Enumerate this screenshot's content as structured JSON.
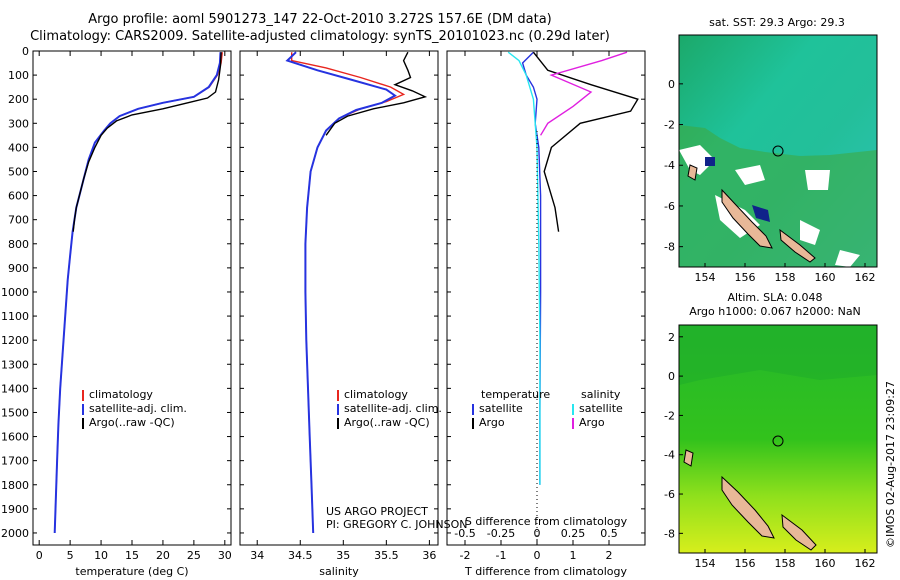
{
  "title": {
    "line1": "Argo profile: aoml 5901273_147 22-Oct-2010 3.272S 157.6E (DM data)",
    "line2": "Climatology: CARS2009. Satellite-adjusted climatology: synTS_20101023.nc (0.29d later)"
  },
  "colors": {
    "climatology": "#e8261f",
    "satellite": "#2633e0",
    "argo": "#000000",
    "argo_salinity": "#e020e0",
    "sat_salinity": "#27e6f0"
  },
  "chart_data": [
    {
      "id": "temperature",
      "type": "line",
      "xlabel": "temperature (deg C)",
      "ylabel": "",
      "xlim": [
        -1,
        31
      ],
      "ylim": [
        2050,
        0
      ],
      "xticks": [
        0,
        5,
        10,
        15,
        20,
        25,
        30
      ],
      "yticks": [
        0,
        100,
        200,
        300,
        400,
        500,
        600,
        700,
        800,
        900,
        1000,
        1100,
        1200,
        1300,
        1400,
        1500,
        1600,
        1700,
        1800,
        1900,
        2000
      ],
      "legend": [
        "climatology",
        "satellite-adj. clim.",
        "Argo(..raw -QC)"
      ],
      "series": [
        {
          "name": "climatology",
          "points": [
            [
              29.6,
              5
            ],
            [
              29.4,
              50
            ],
            [
              28.8,
              100
            ],
            [
              27.5,
              150
            ],
            [
              25,
              190
            ],
            [
              20,
              215
            ],
            [
              16,
              240
            ],
            [
              13,
              270
            ],
            [
              11.5,
              300
            ],
            [
              10.5,
              330
            ],
            [
              9,
              380
            ],
            [
              8,
              450
            ],
            [
              7,
              550
            ],
            [
              6,
              650
            ],
            [
              5.4,
              750
            ],
            [
              5,
              850
            ],
            [
              4.6,
              950
            ],
            [
              4.2,
              1100
            ],
            [
              3.8,
              1250
            ],
            [
              3.4,
              1400
            ],
            [
              3.1,
              1550
            ],
            [
              2.9,
              1700
            ],
            [
              2.7,
              1850
            ],
            [
              2.5,
              2000
            ]
          ]
        },
        {
          "name": "satellite-adj. clim.",
          "points": [
            [
              29.3,
              5
            ],
            [
              29.2,
              50
            ],
            [
              28.7,
              100
            ],
            [
              27.4,
              150
            ],
            [
              25,
              190
            ],
            [
              20,
              215
            ],
            [
              16,
              240
            ],
            [
              13,
              270
            ],
            [
              11.5,
              300
            ],
            [
              10.5,
              330
            ],
            [
              9,
              380
            ],
            [
              8,
              450
            ],
            [
              7,
              550
            ],
            [
              6,
              650
            ],
            [
              5.4,
              750
            ],
            [
              5,
              850
            ],
            [
              4.6,
              950
            ],
            [
              4.2,
              1100
            ],
            [
              3.8,
              1250
            ],
            [
              3.4,
              1400
            ],
            [
              3.1,
              1550
            ],
            [
              2.9,
              1700
            ],
            [
              2.7,
              1850
            ],
            [
              2.5,
              2000
            ]
          ]
        },
        {
          "name": "Argo(..raw -QC)",
          "points": [
            [
              29.4,
              5
            ],
            [
              29.3,
              60
            ],
            [
              29,
              120
            ],
            [
              28.5,
              170
            ],
            [
              27.2,
              195
            ],
            [
              24,
              215
            ],
            [
              20,
              240
            ],
            [
              15,
              265
            ],
            [
              12.5,
              290
            ],
            [
              11,
              320
            ],
            [
              10,
              350
            ],
            [
              9,
              400
            ],
            [
              8,
              460
            ],
            [
              7.2,
              530
            ],
            [
              6.5,
              600
            ],
            [
              6,
              650
            ],
            [
              5.7,
              700
            ],
            [
              5.5,
              750
            ]
          ]
        }
      ]
    },
    {
      "id": "salinity",
      "type": "line",
      "xlabel": "salinity",
      "ylabel": "",
      "xlim": [
        33.8,
        36.1
      ],
      "ylim": [
        2050,
        0
      ],
      "xticks": [
        34,
        34.5,
        35,
        35.5,
        36
      ],
      "legend": [
        "climatology",
        "satellite-adj. clim.",
        "Argo(..raw -QC)"
      ],
      "annotation": [
        "US ARGO PROJECT",
        "PI: GREGORY C. JOHNSON"
      ],
      "series": [
        {
          "name": "climatology",
          "points": [
            [
              34.4,
              5
            ],
            [
              34.4,
              40
            ],
            [
              34.8,
              70
            ],
            [
              35.2,
              110
            ],
            [
              35.55,
              150
            ],
            [
              35.7,
              180
            ],
            [
              35.5,
              210
            ],
            [
              35.2,
              240
            ],
            [
              34.95,
              280
            ],
            [
              34.8,
              330
            ],
            [
              34.7,
              400
            ],
            [
              34.62,
              500
            ],
            [
              34.58,
              650
            ],
            [
              34.56,
              800
            ],
            [
              34.56,
              1000
            ],
            [
              34.57,
              1200
            ],
            [
              34.59,
              1400
            ],
            [
              34.61,
              1600
            ],
            [
              34.63,
              1800
            ],
            [
              34.65,
              2000
            ]
          ]
        },
        {
          "name": "satellite-adj. clim.",
          "points": [
            [
              34.45,
              5
            ],
            [
              34.35,
              40
            ],
            [
              34.7,
              80
            ],
            [
              35.1,
              120
            ],
            [
              35.5,
              160
            ],
            [
              35.6,
              185
            ],
            [
              35.45,
              215
            ],
            [
              35.15,
              245
            ],
            [
              34.95,
              280
            ],
            [
              34.8,
              330
            ],
            [
              34.7,
              400
            ],
            [
              34.62,
              500
            ],
            [
              34.58,
              650
            ],
            [
              34.56,
              800
            ],
            [
              34.56,
              1000
            ],
            [
              34.57,
              1200
            ],
            [
              34.59,
              1400
            ],
            [
              34.61,
              1600
            ],
            [
              34.63,
              1800
            ],
            [
              34.65,
              2000
            ]
          ]
        },
        {
          "name": "Argo(..raw -QC)",
          "points": [
            [
              35.75,
              5
            ],
            [
              35.7,
              40
            ],
            [
              35.75,
              80
            ],
            [
              35.78,
              110
            ],
            [
              35.6,
              140
            ],
            [
              35.8,
              165
            ],
            [
              35.95,
              190
            ],
            [
              35.7,
              215
            ],
            [
              35.35,
              240
            ],
            [
              35.05,
              270
            ],
            [
              34.9,
              300
            ],
            [
              34.8,
              350
            ]
          ]
        }
      ]
    },
    {
      "id": "difference",
      "type": "line",
      "xlabel": "T difference from climatology",
      "xlabel_top": "S difference from climatology",
      "xlim": [
        -2.5,
        3.0
      ],
      "ylim": [
        2050,
        0
      ],
      "xticks": [
        -2,
        -1,
        0,
        1,
        2
      ],
      "xticks_salinity": [
        "-0.5",
        "-0.25",
        "0",
        "0.25",
        "0.5"
      ],
      "legend": {
        "temperature": [
          "satellite",
          "Argo"
        ],
        "salinity": [
          "satellite",
          "Argo"
        ]
      },
      "legend_headers": [
        "temperature",
        "salinity"
      ],
      "series": [
        {
          "name": "temperature satellite",
          "points": [
            [
              -0.1,
              5
            ],
            [
              -0.4,
              50
            ],
            [
              -0.3,
              100
            ],
            [
              -0.1,
              150
            ],
            [
              0.0,
              200
            ],
            [
              -0.05,
              300
            ],
            [
              0.05,
              400
            ],
            [
              0.1,
              600
            ],
            [
              0.1,
              1000
            ],
            [
              0.08,
              1500
            ],
            [
              0.08,
              1800
            ]
          ]
        },
        {
          "name": "temperature Argo",
          "points": [
            [
              -0.1,
              5
            ],
            [
              0.3,
              80
            ],
            [
              1.5,
              140
            ],
            [
              2.8,
              200
            ],
            [
              2.6,
              250
            ],
            [
              1.2,
              300
            ],
            [
              0.4,
              400
            ],
            [
              0.2,
              500
            ],
            [
              0.4,
              600
            ],
            [
              0.5,
              650
            ],
            [
              0.6,
              750
            ]
          ]
        },
        {
          "name": "salinity satellite",
          "points": [
            [
              -0.8,
              5
            ],
            [
              -0.5,
              40
            ],
            [
              -0.3,
              100
            ],
            [
              -0.1,
              200
            ],
            [
              0.0,
              400
            ],
            [
              0.05,
              800
            ],
            [
              0.08,
              1200
            ],
            [
              0.08,
              1600
            ],
            [
              0.08,
              1800
            ]
          ]
        },
        {
          "name": "salinity Argo",
          "points": [
            [
              2.5,
              5
            ],
            [
              1.8,
              40
            ],
            [
              0.4,
              100
            ],
            [
              1.5,
              170
            ],
            [
              1.0,
              230
            ],
            [
              0.3,
              300
            ],
            [
              0.1,
              350
            ]
          ]
        }
      ]
    },
    {
      "id": "sst-map",
      "type": "heatmap",
      "title": "sat. SST: 29.3 Argo: 29.3",
      "xticks": [
        154,
        156,
        158,
        160,
        162
      ],
      "yticks": [
        0,
        -2,
        -4,
        -6,
        -8
      ],
      "marker": [
        157.6,
        -3.272
      ]
    },
    {
      "id": "sla-map",
      "type": "heatmap",
      "title_line1": "Altim. SLA: 0.048",
      "title_line2": "Argo h1000: 0.067 h2000: NaN",
      "xticks": [
        154,
        156,
        158,
        160,
        162
      ],
      "yticks": [
        2,
        0,
        -2,
        -4,
        -6,
        -8
      ],
      "marker": [
        157.6,
        -3.272
      ]
    }
  ],
  "stamp": "©IMOS 02-Aug-2017 23:09:27"
}
